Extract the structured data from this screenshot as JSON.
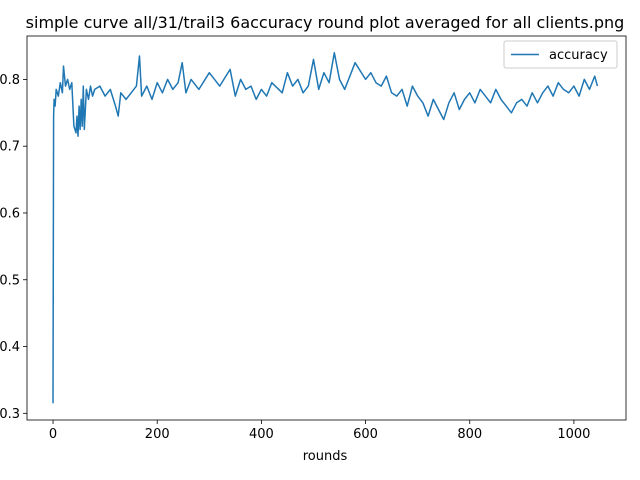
{
  "chart_data": {
    "type": "line",
    "title": "simple curve all/31/trail3 6accuracy round plot averaged for all clients.png",
    "xlabel": "rounds",
    "ylabel": "",
    "xlim": [
      -50,
      1100
    ],
    "ylim": [
      0.29,
      0.865
    ],
    "xticks": [
      0,
      200,
      400,
      600,
      800,
      1000
    ],
    "yticks": [
      0.3,
      0.4,
      0.5,
      0.6,
      0.7,
      0.8
    ],
    "ytick_labels": [
      "0.3",
      "0.4",
      "0.5",
      "0.6",
      "0.7",
      "0.8"
    ],
    "legend_position": "top-right",
    "grid": false,
    "series": [
      {
        "name": "accuracy",
        "color": "#1f77b4",
        "x": [
          0,
          1,
          2,
          4,
          6,
          10,
          14,
          18,
          20,
          24,
          28,
          32,
          36,
          40,
          44,
          46,
          48,
          50,
          52,
          54,
          56,
          58,
          60,
          64,
          68,
          72,
          76,
          80,
          90,
          100,
          110,
          120,
          125,
          130,
          140,
          150,
          160,
          166,
          170,
          180,
          190,
          200,
          210,
          220,
          230,
          240,
          248,
          255,
          265,
          280,
          300,
          320,
          340,
          350,
          360,
          370,
          380,
          390,
          400,
          410,
          420,
          440,
          450,
          460,
          470,
          480,
          490,
          500,
          510,
          520,
          530,
          540,
          550,
          560,
          580,
          600,
          610,
          620,
          630,
          640,
          650,
          660,
          670,
          680,
          690,
          700,
          710,
          720,
          730,
          740,
          750,
          760,
          770,
          780,
          790,
          800,
          810,
          820,
          830,
          840,
          850,
          860,
          870,
          880,
          890,
          900,
          910,
          920,
          930,
          940,
          950,
          960,
          970,
          980,
          990,
          1000,
          1010,
          1020,
          1030,
          1040,
          1045
        ],
        "y": [
          0.315,
          0.745,
          0.77,
          0.76,
          0.785,
          0.775,
          0.795,
          0.78,
          0.82,
          0.79,
          0.8,
          0.785,
          0.795,
          0.73,
          0.72,
          0.745,
          0.715,
          0.76,
          0.725,
          0.77,
          0.73,
          0.79,
          0.725,
          0.785,
          0.77,
          0.79,
          0.775,
          0.785,
          0.79,
          0.775,
          0.785,
          0.76,
          0.745,
          0.78,
          0.77,
          0.78,
          0.79,
          0.835,
          0.775,
          0.79,
          0.77,
          0.795,
          0.78,
          0.8,
          0.785,
          0.795,
          0.825,
          0.78,
          0.8,
          0.785,
          0.81,
          0.79,
          0.815,
          0.775,
          0.8,
          0.785,
          0.79,
          0.77,
          0.785,
          0.775,
          0.795,
          0.78,
          0.81,
          0.79,
          0.8,
          0.78,
          0.79,
          0.83,
          0.785,
          0.81,
          0.795,
          0.84,
          0.8,
          0.785,
          0.825,
          0.8,
          0.81,
          0.795,
          0.79,
          0.805,
          0.78,
          0.775,
          0.785,
          0.76,
          0.79,
          0.775,
          0.765,
          0.745,
          0.77,
          0.755,
          0.74,
          0.765,
          0.78,
          0.755,
          0.77,
          0.78,
          0.765,
          0.785,
          0.775,
          0.765,
          0.785,
          0.77,
          0.76,
          0.75,
          0.765,
          0.77,
          0.76,
          0.78,
          0.765,
          0.78,
          0.79,
          0.775,
          0.795,
          0.785,
          0.78,
          0.79,
          0.775,
          0.8,
          0.785,
          0.805,
          0.79
        ]
      }
    ]
  }
}
